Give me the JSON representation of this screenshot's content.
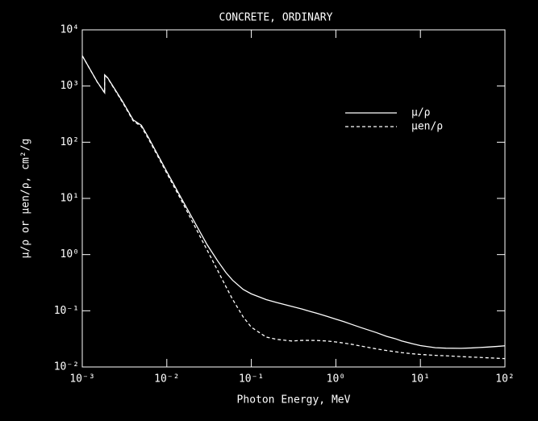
{
  "chart_data": {
    "type": "line",
    "title": "CONCRETE, ORDINARY",
    "xlabel": "Photon Energy, MeV",
    "ylabel": "μ/ρ or μen/ρ, cm²/g",
    "xscale": "log",
    "yscale": "log",
    "legend": "upper right",
    "x": [
      0.001,
      0.0015,
      0.00184,
      0.00184,
      0.002,
      0.003,
      0.004,
      0.005,
      0.006,
      0.008,
      0.01,
      0.015,
      0.02,
      0.03,
      0.04,
      0.05,
      0.06,
      0.08,
      0.1,
      0.15,
      0.2,
      0.3,
      0.4,
      0.5,
      0.6,
      0.8,
      1,
      1.25,
      1.5,
      2,
      3,
      4,
      5,
      6,
      8,
      10,
      15,
      20,
      30,
      40,
      50,
      60,
      80,
      100
    ],
    "series": [
      {
        "name": "μ/ρ",
        "color": "#ffffff",
        "dash": "solid",
        "values": [
          3466,
          1193,
          760,
          1580,
          1400,
          530,
          250,
          200,
          125,
          56,
          30,
          9.8,
          4.5,
          1.5,
          0.77,
          0.48,
          0.35,
          0.24,
          0.2,
          0.158,
          0.14,
          0.12,
          0.107,
          0.097,
          0.09,
          0.079,
          0.071,
          0.064,
          0.058,
          0.05,
          0.041,
          0.035,
          0.032,
          0.029,
          0.026,
          0.024,
          0.022,
          0.0216,
          0.0215,
          0.0218,
          0.0222,
          0.0225,
          0.0232,
          0.0238
        ]
      },
      {
        "name": "μen/ρ",
        "color": "#ffffff",
        "dash": "dashed",
        "values": [
          3457,
          1185,
          755,
          1570,
          1380,
          510,
          240,
          190,
          118,
          53,
          28,
          9,
          3.9,
          1.2,
          0.52,
          0.27,
          0.16,
          0.078,
          0.051,
          0.034,
          0.031,
          0.029,
          0.0297,
          0.0297,
          0.0296,
          0.0289,
          0.0279,
          0.0266,
          0.0255,
          0.0235,
          0.021,
          0.0196,
          0.0187,
          0.018,
          0.0172,
          0.0167,
          0.0161,
          0.0158,
          0.0153,
          0.015,
          0.0148,
          0.0146,
          0.0143,
          0.0141
        ]
      }
    ],
    "xlim": [
      0.001,
      100
    ],
    "xticks": [
      {
        "value": 0.001,
        "label": "10⁻³"
      },
      {
        "value": 0.01,
        "label": "10⁻²"
      },
      {
        "value": 0.1,
        "label": "10⁻¹"
      },
      {
        "value": 1,
        "label": "10⁰"
      },
      {
        "value": 10,
        "label": "10¹"
      },
      {
        "value": 100,
        "label": "10²"
      }
    ],
    "ylim": [
      0.01,
      10000
    ],
    "yticks": [
      {
        "value": 0.01,
        "label": "10⁻²"
      },
      {
        "value": 0.1,
        "label": "10⁻¹"
      },
      {
        "value": 1,
        "label": "10⁰"
      },
      {
        "value": 10,
        "label": "10¹"
      },
      {
        "value": 100,
        "label": "10²"
      },
      {
        "value": 1000,
        "label": "10³"
      },
      {
        "value": 10000,
        "label": "10⁴"
      }
    ]
  }
}
